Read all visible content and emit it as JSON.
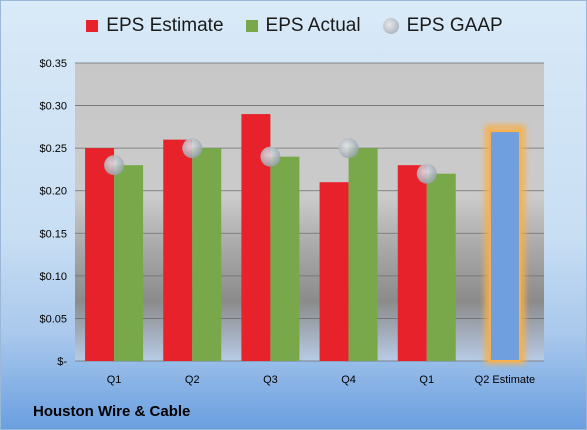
{
  "chart_data": {
    "type": "bar",
    "categories": [
      "Q1",
      "Q2",
      "Q3",
      "Q4",
      "Q1",
      "Q2 Estimate"
    ],
    "series": [
      {
        "name": "EPS Estimate",
        "values": [
          0.25,
          0.26,
          0.29,
          0.21,
          0.23,
          null
        ]
      },
      {
        "name": "EPS Actual",
        "values": [
          0.23,
          0.25,
          0.24,
          0.25,
          0.22,
          null
        ]
      },
      {
        "name": "EPS GAAP",
        "values": [
          0.23,
          0.25,
          0.24,
          0.25,
          0.22,
          null
        ],
        "marker": "scatter"
      }
    ],
    "estimate": {
      "category": "Q2 Estimate",
      "value": 0.27
    },
    "yticks": [
      "$-",
      "$0.05",
      "$0.10",
      "$0.15",
      "$0.20",
      "$0.25",
      "$0.30",
      "$0.35"
    ],
    "ylim": [
      0,
      0.35
    ],
    "grid": true,
    "legend_position": "top",
    "colors": {
      "estimate": "#e8222a",
      "actual": "#79a84b",
      "gaap": "#b8c2cc",
      "forecast": "#6f9fde",
      "forecast_glow": "#f7b04c"
    }
  },
  "footer": {
    "company": "Houston Wire & Cable"
  }
}
